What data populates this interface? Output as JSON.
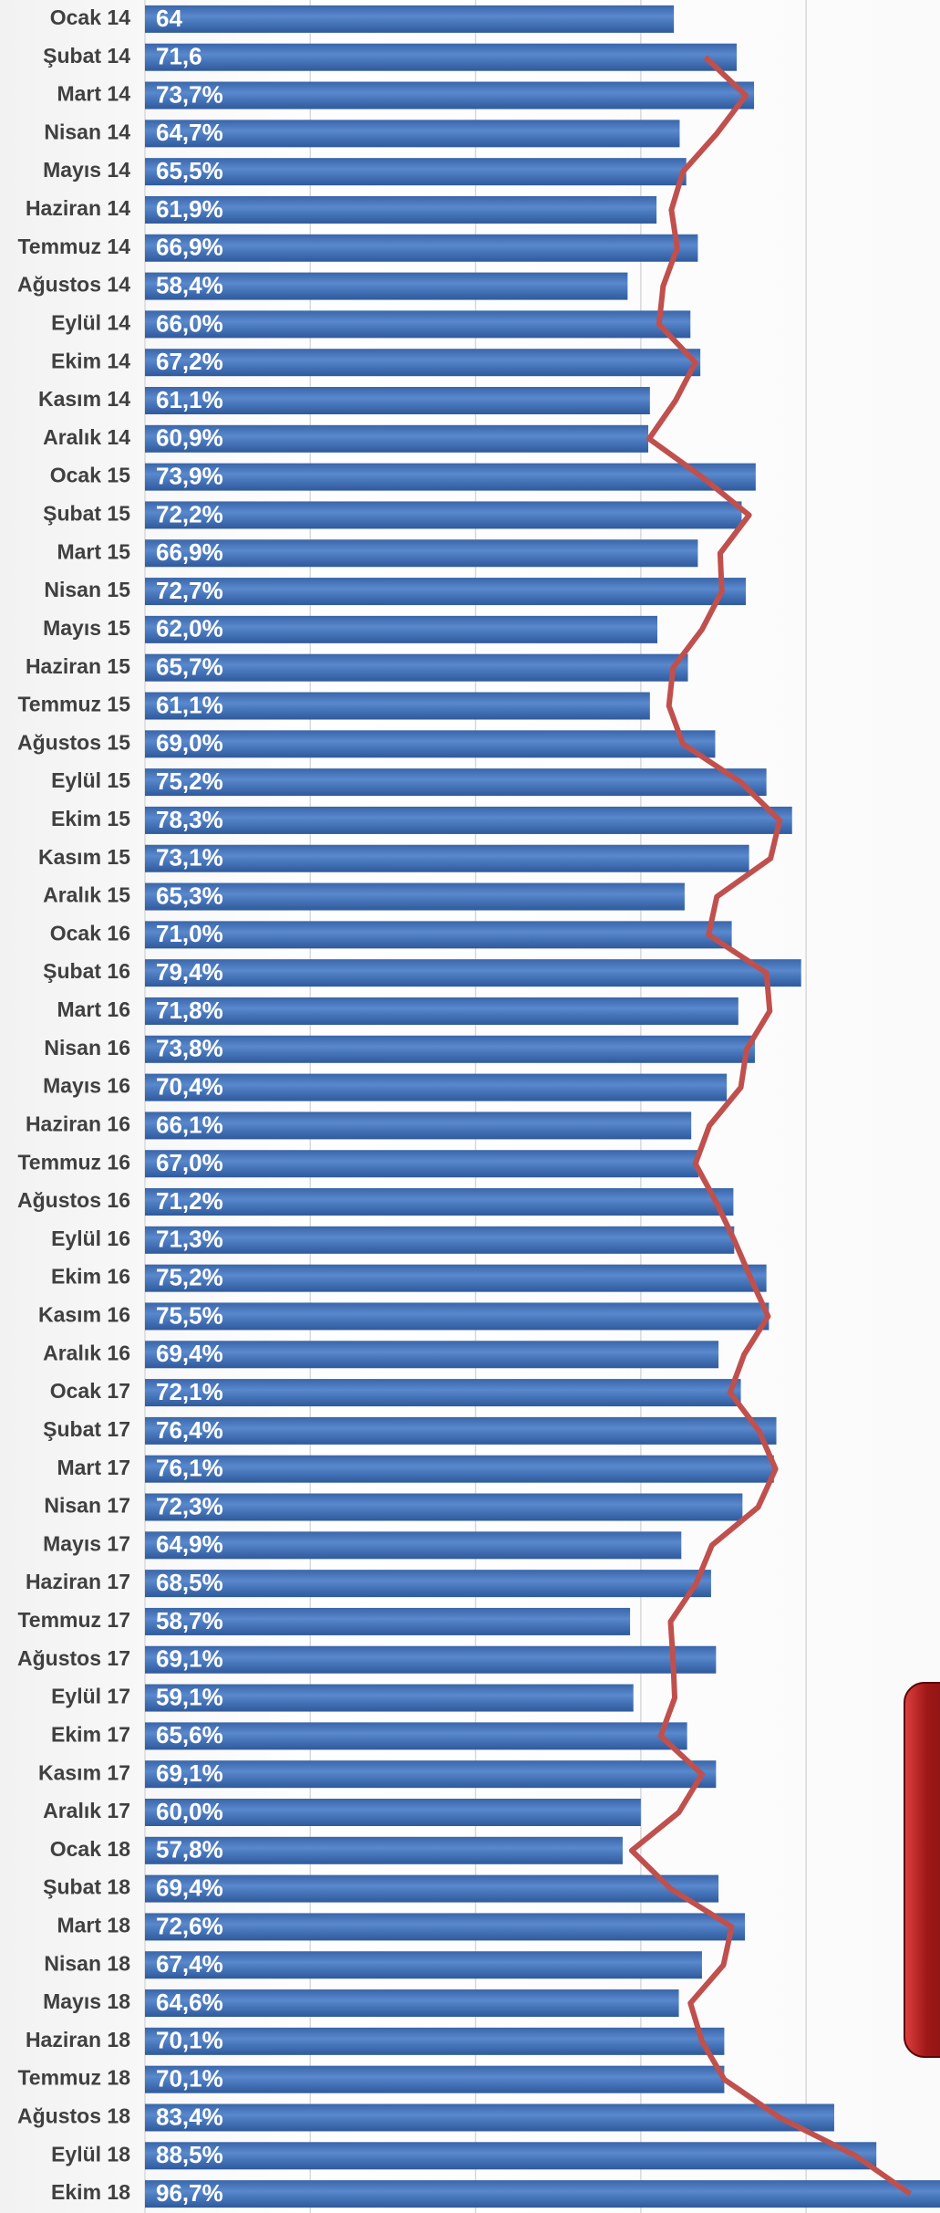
{
  "chart_data": {
    "type": "bar",
    "categories": [
      "Ocak 14",
      "Şubat 14",
      "Mart 14",
      "Nisan 14",
      "Mayıs 14",
      "Haziran 14",
      "Temmuz 14",
      "Ağustos 14",
      "Eylül 14",
      "Ekim 14",
      "Kasım 14",
      "Aralık 14",
      "Ocak 15",
      "Şubat 15",
      "Mart 15",
      "Nisan 15",
      "Mayıs 15",
      "Haziran 15",
      "Temmuz 15",
      "Ağustos 15",
      "Eylül 15",
      "Ekim 15",
      "Kasım 15",
      "Aralık 15",
      "Ocak 16",
      "Şubat 16",
      "Mart 16",
      "Nisan 16",
      "Mayıs 16",
      "Haziran 16",
      "Temmuz 16",
      "Ağustos 16",
      "Eylül 16",
      "Ekim 16",
      "Kasım 16",
      "Aralık 16",
      "Ocak 17",
      "Şubat 17",
      "Mart 17",
      "Nisan 17",
      "Mayıs 17",
      "Haziran 17",
      "Temmuz 17",
      "Ağustos 17",
      "Eylül 17",
      "Ekim 17",
      "Kasım 17",
      "Aralık 17",
      "Ocak 18",
      "Şubat 18",
      "Mart 18",
      "Nisan 18",
      "Mayıs 18",
      "Haziran 18",
      "Temmuz 18",
      "Ağustos 18",
      "Eylül 18",
      "Ekim 18"
    ],
    "series": [
      {
        "color": "#4472c4",
        "values": [
          64,
          71.6,
          73.7,
          64.7,
          65.5,
          61.9,
          66.9,
          58.4,
          66.0,
          67.2,
          61.1,
          60.9,
          73.9,
          72.2,
          66.9,
          72.7,
          62.0,
          65.7,
          61.1,
          69.0,
          75.2,
          78.3,
          73.1,
          65.3,
          71.0,
          79.4,
          71.8,
          73.8,
          70.4,
          66.1,
          67.0,
          71.2,
          71.3,
          75.2,
          75.5,
          69.4,
          72.1,
          76.4,
          76.1,
          72.3,
          64.9,
          68.5,
          58.7,
          69.1,
          59.1,
          65.6,
          69.1,
          60.0,
          57.8,
          69.4,
          72.6,
          67.4,
          64.6,
          70.1,
          70.1,
          83.4,
          88.5,
          96.7
        ],
        "value_labels": [
          "64",
          "71,6",
          "73,7%",
          "64,7%",
          "65,5%",
          "61,9%",
          "66,9%",
          "58,4%",
          "66,0%",
          "67,2%",
          "61,1%",
          "60,9%",
          "73,9%",
          "72,2%",
          "66,9%",
          "72,7%",
          "62,0%",
          "65,7%",
          "61,1%",
          "69,0%",
          "75,2%",
          "78,3%",
          "73,1%",
          "65,3%",
          "71,0%",
          "79,4%",
          "71,8%",
          "73,8%",
          "70,4%",
          "66,1%",
          "67,0%",
          "71,2%",
          "71,3%",
          "75,2%",
          "75,5%",
          "69,4%",
          "72,1%",
          "76,4%",
          "76,1%",
          "72,3%",
          "64,9%",
          "68,5%",
          "58,7%",
          "69,1%",
          "59,1%",
          "65,6%",
          "69,1%",
          "60,0%",
          "57,8%",
          "69,4%",
          "72,6%",
          "67,4%",
          "64,6%",
          "70,1%",
          "70,1%",
          "83,4%",
          "88,5%",
          "96,7%"
        ]
      },
      {
        "type": "line",
        "color": "#c0504d",
        "values": [
          null,
          67.8,
          72.7,
          69.2,
          65.1,
          63.7,
          64.4,
          62.7,
          62.2,
          66.6,
          64.2,
          61.0,
          67.4,
          73.1,
          69.6,
          69.8,
          67.4,
          63.9,
          63.4,
          65.1,
          72.1,
          76.8,
          75.7,
          69.2,
          68.2,
          75.2,
          75.6,
          72.8,
          72.1,
          68.3,
          66.6,
          69.1,
          71.3,
          73.3,
          75.4,
          72.5,
          70.8,
          74.3,
          76.3,
          74.2,
          68.6,
          66.7,
          63.6,
          63.9,
          64.1,
          62.4,
          67.4,
          64.6,
          58.9,
          63.6,
          71.0,
          70.0,
          66.0,
          67.4,
          70.1,
          76.8,
          86.0,
          92.6
        ]
      }
    ],
    "xlim": [
      0,
      96.2
    ],
    "xticks": [
      0,
      20,
      40,
      60,
      80
    ],
    "grid": true
  }
}
